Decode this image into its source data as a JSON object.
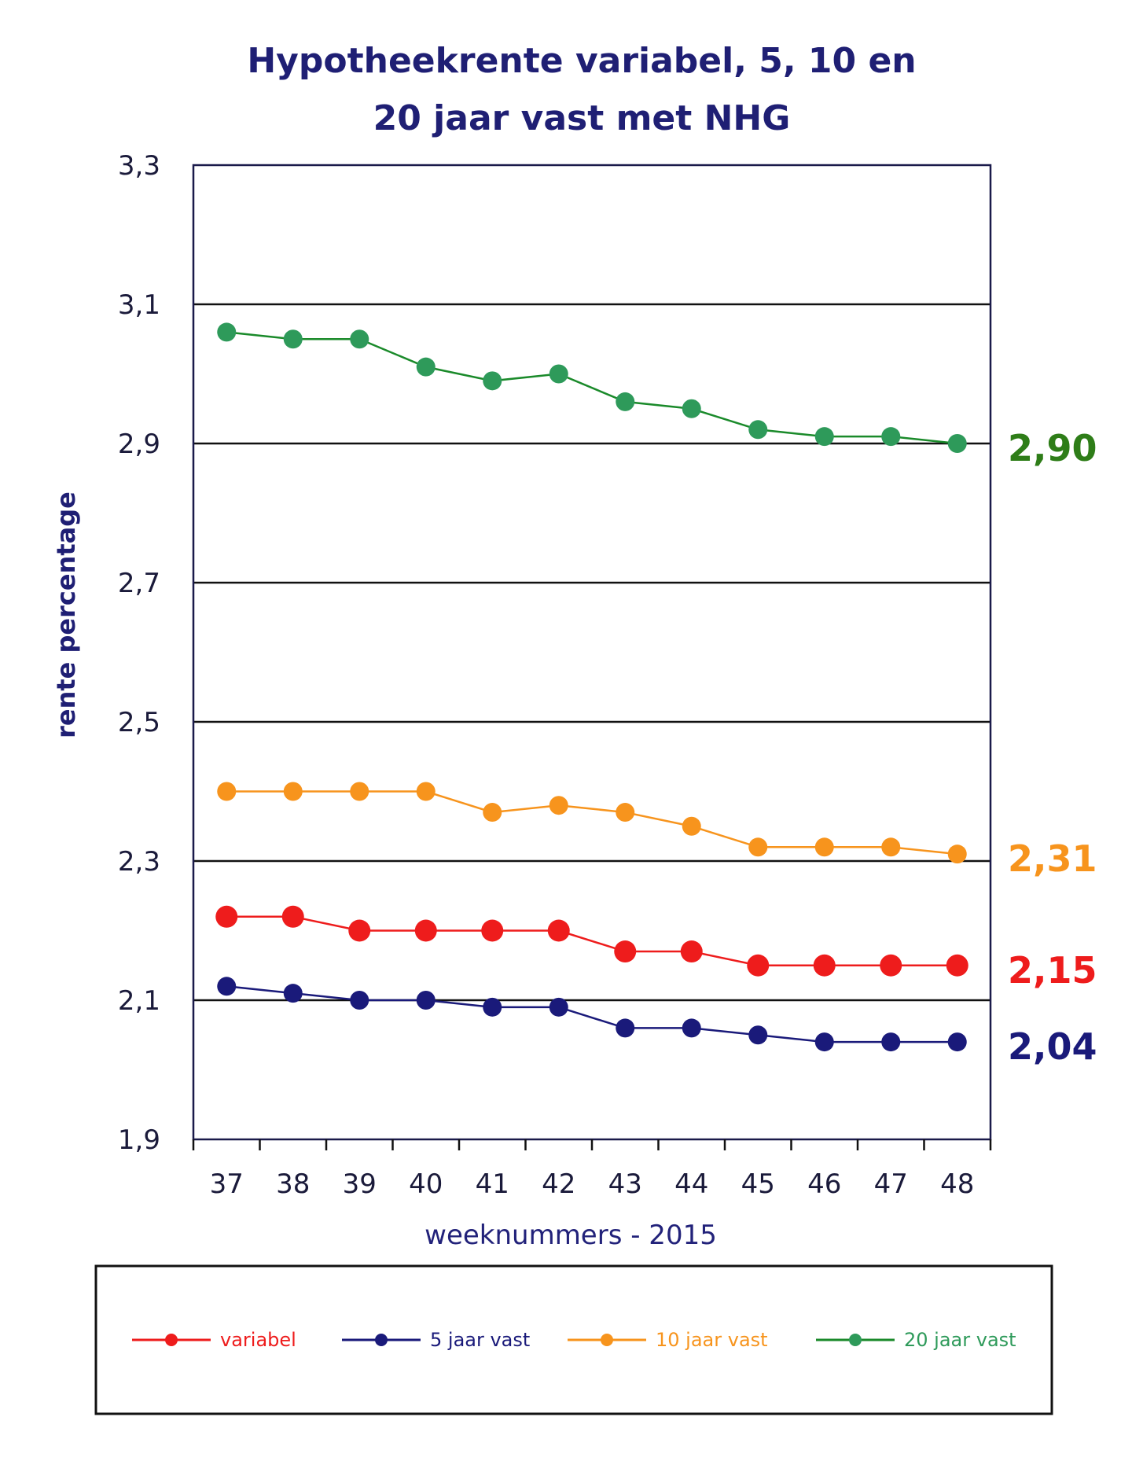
{
  "chart_data": {
    "type": "line",
    "title_line1": "Hypotheekrente variabel, 5, 10 en",
    "title_line2": "20 jaar vast met NHG",
    "xlabel": "weeknummers - 2015",
    "ylabel": "rente percentage",
    "ylim": [
      1.9,
      3.3
    ],
    "yticks": [
      "1,9",
      "2,1",
      "2,3",
      "2,5",
      "2,7",
      "2,9",
      "3,1",
      "3,3"
    ],
    "yticks_values": [
      1.9,
      2.1,
      2.3,
      2.5,
      2.7,
      2.9,
      3.1,
      3.3
    ],
    "categories": [
      "37",
      "38",
      "39",
      "40",
      "41",
      "42",
      "43",
      "44",
      "45",
      "46",
      "47",
      "48"
    ],
    "grid": "horizontal",
    "legend_position": "bottom",
    "series": [
      {
        "name": "variabel",
        "color": "#ee1c1c",
        "values": [
          2.22,
          2.22,
          2.2,
          2.2,
          2.2,
          2.2,
          2.17,
          2.17,
          2.15,
          2.15,
          2.15,
          2.15
        ],
        "end_label": "2,15"
      },
      {
        "name": "5 jaar vast",
        "color": "#1a1a7a",
        "values": [
          2.12,
          2.11,
          2.1,
          2.1,
          2.09,
          2.09,
          2.06,
          2.06,
          2.05,
          2.04,
          2.04,
          2.04
        ],
        "end_label": "2,04"
      },
      {
        "name": "10 jaar vast",
        "color": "#f7941d",
        "values": [
          2.4,
          2.4,
          2.4,
          2.4,
          2.37,
          2.38,
          2.37,
          2.35,
          2.32,
          2.32,
          2.32,
          2.31
        ],
        "end_label": "2,31"
      },
      {
        "name": "20 jaar vast",
        "color": "#2e9a5a",
        "line_color": "#1a8a2a",
        "values": [
          3.06,
          3.05,
          3.05,
          3.01,
          2.99,
          3.0,
          2.96,
          2.95,
          2.92,
          2.91,
          2.91,
          2.9
        ],
        "end_label": "2,90",
        "end_label_color": "#2e7d18"
      }
    ]
  }
}
